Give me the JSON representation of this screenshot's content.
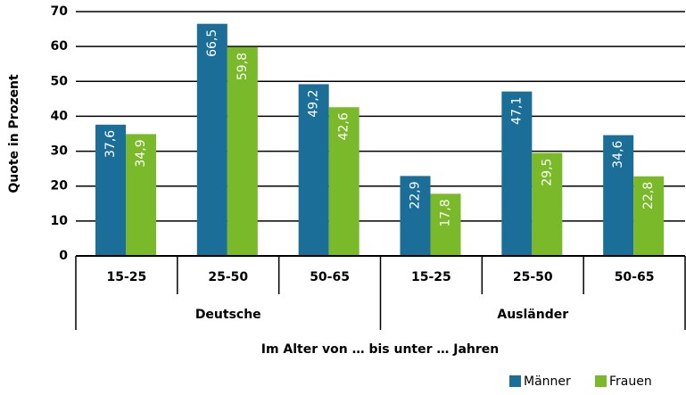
{
  "chart_data": {
    "type": "bar",
    "y_label": "Quote in Prozent",
    "x_label": "Im Alter von … bis unter … Jahren",
    "categories": [
      "15-25",
      "25-50",
      "50-65",
      "15-25",
      "25-50",
      "50-65"
    ],
    "groups": [
      "Deutsche",
      "Ausländer"
    ],
    "series": [
      {
        "name": "Männer",
        "color": "#1b6e98",
        "values": [
          37.6,
          66.5,
          49.2,
          22.9,
          47.1,
          34.6
        ],
        "value_labels": [
          "37,6",
          "66,5",
          "49,2",
          "22,9",
          "47,1",
          "34,6"
        ]
      },
      {
        "name": "Frauen",
        "color": "#7ab929",
        "values": [
          34.9,
          59.8,
          42.6,
          17.8,
          29.5,
          22.8
        ],
        "value_labels": [
          "34,9",
          "59,8",
          "42,6",
          "17,8",
          "29,5",
          "22,8"
        ]
      }
    ],
    "ylim": [
      0,
      70
    ],
    "yticks": [
      0,
      10,
      20,
      30,
      40,
      50,
      60,
      70
    ],
    "grid": true,
    "legend": "bottom-right"
  }
}
